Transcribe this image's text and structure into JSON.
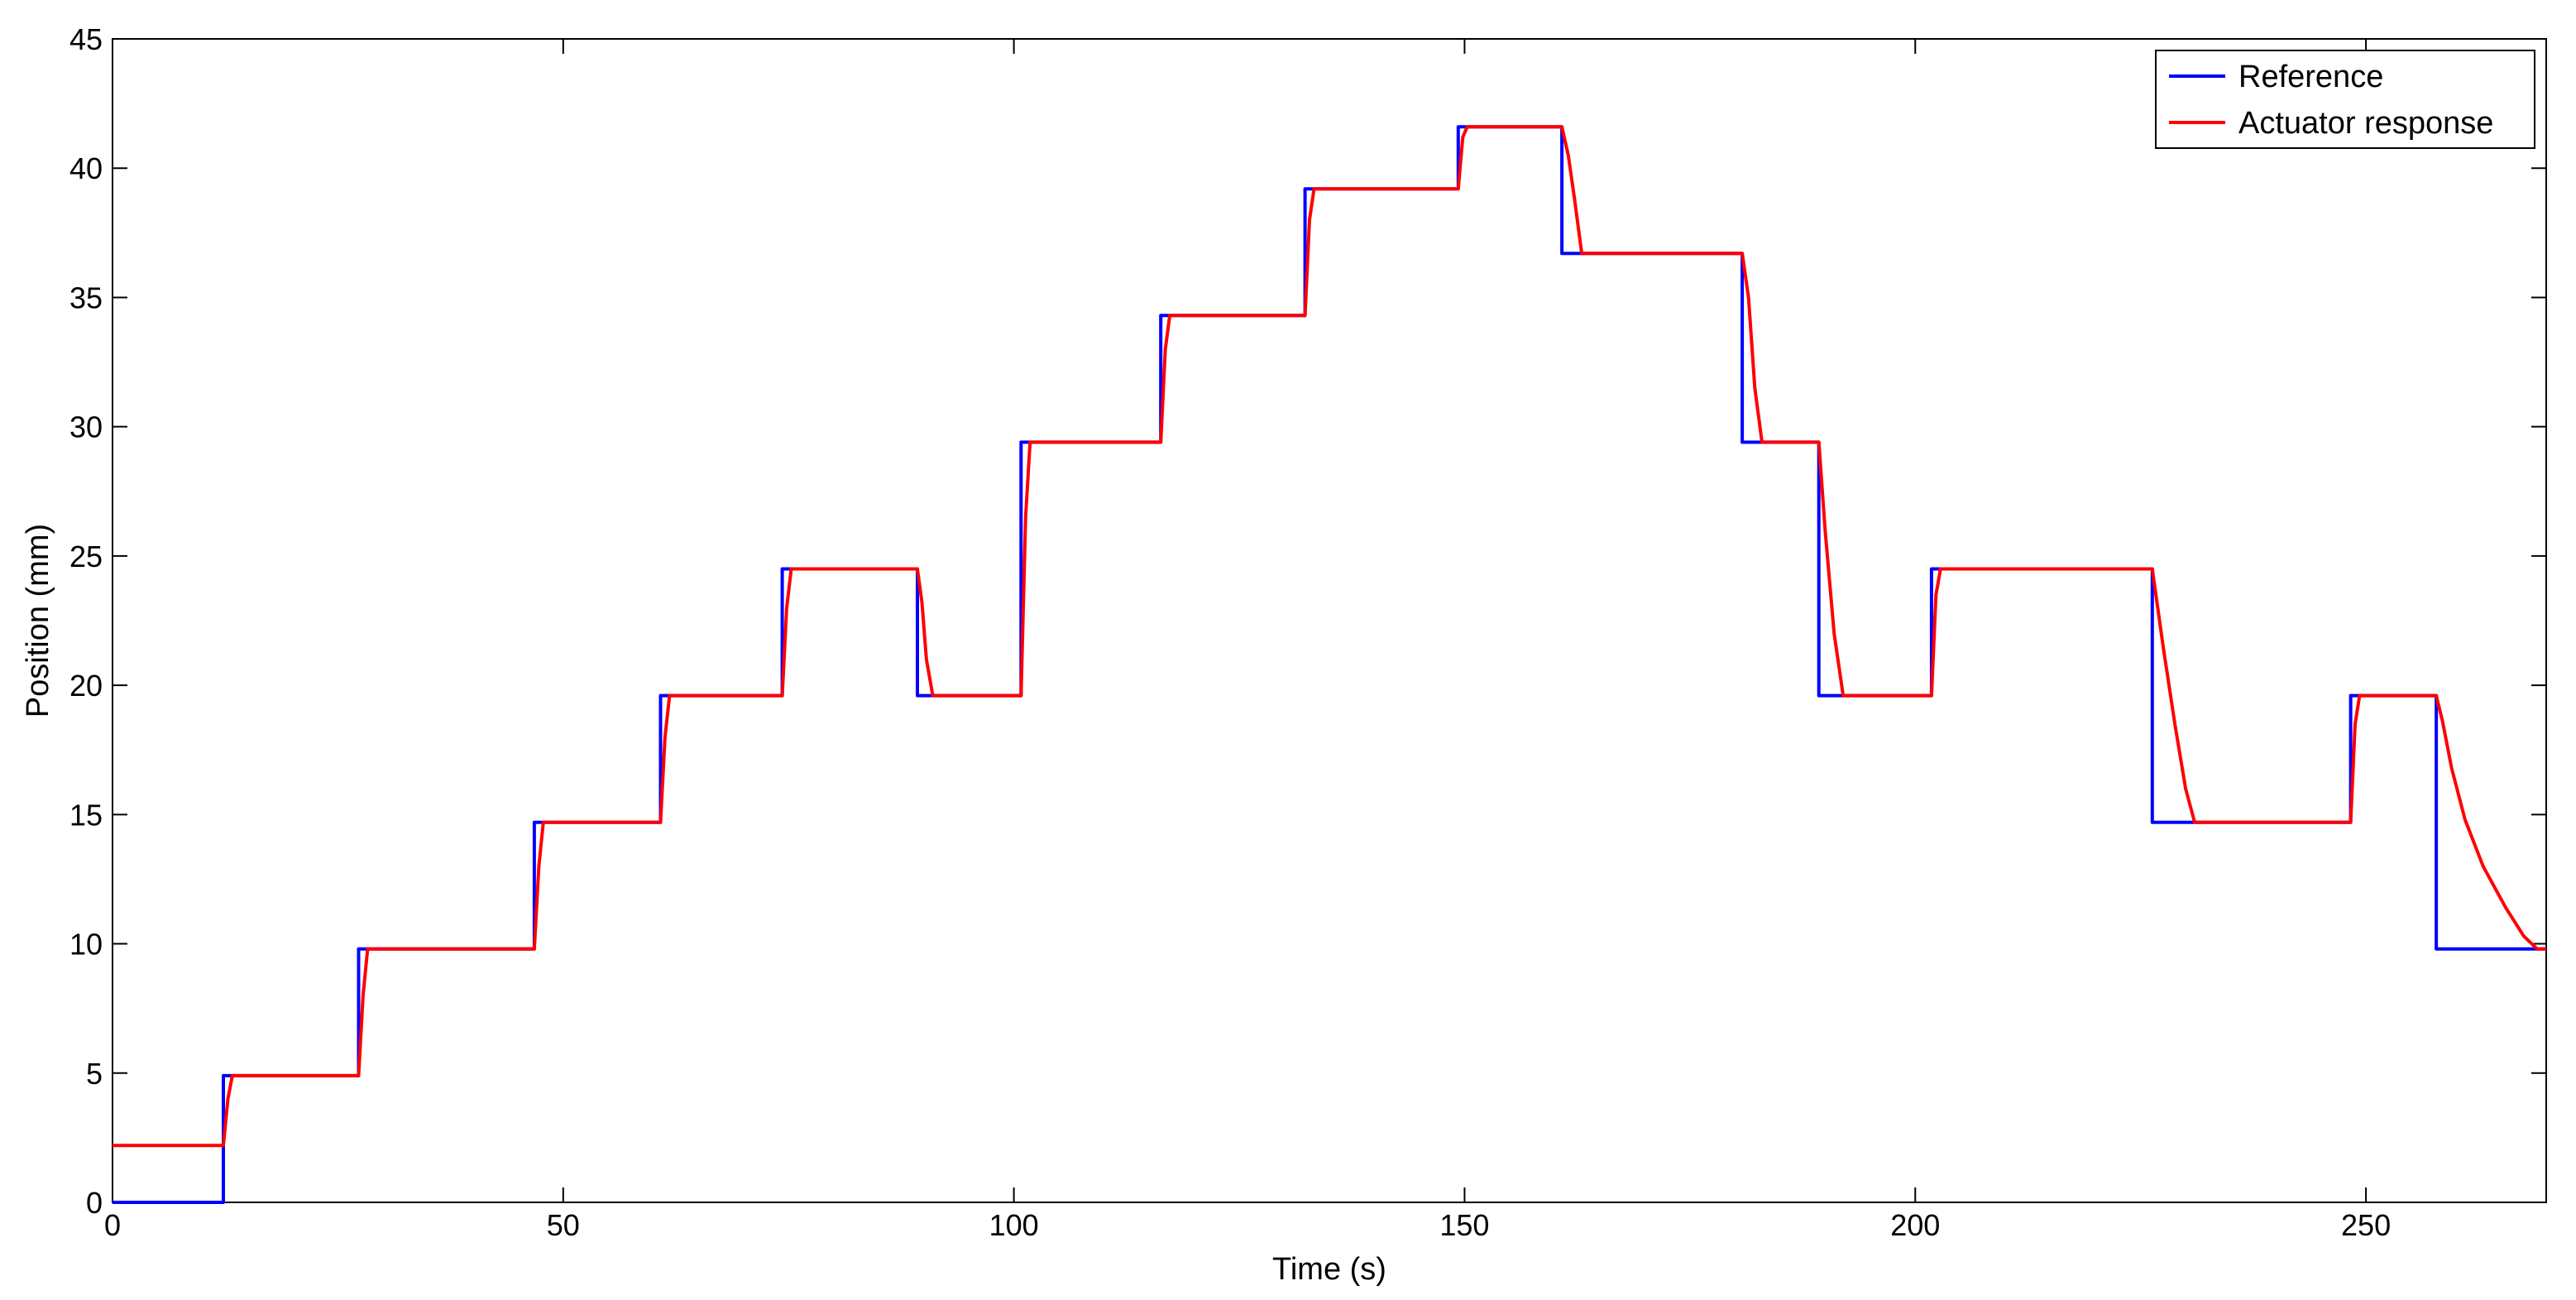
{
  "chart_data": {
    "type": "line",
    "title": "",
    "xlabel": "Time (s)",
    "ylabel": "Position (mm)",
    "xlim": [
      0,
      270
    ],
    "ylim": [
      0,
      45
    ],
    "xticks": [
      0,
      50,
      100,
      150,
      200,
      250
    ],
    "yticks": [
      0,
      5,
      10,
      15,
      20,
      25,
      30,
      35,
      40,
      45
    ],
    "grid": false,
    "legend_position": "top-right",
    "series": [
      {
        "name": "Reference",
        "color": "#0000ff",
        "x": [
          0,
          12.3,
          12.3,
          27.3,
          27.3,
          46.8,
          46.8,
          60.8,
          60.8,
          74.3,
          74.3,
          89.3,
          89.3,
          100.8,
          100.8,
          116.3,
          116.3,
          132.3,
          132.3,
          149.3,
          149.3,
          160.8,
          160.8,
          180.8,
          180.8,
          189.3,
          189.3,
          201.8,
          201.8,
          226.3,
          226.3,
          248.3,
          248.3,
          257.8,
          257.8,
          270
        ],
        "y": [
          0,
          0,
          4.9,
          4.9,
          9.8,
          9.8,
          14.7,
          14.7,
          19.6,
          19.6,
          24.5,
          24.5,
          19.6,
          19.6,
          29.4,
          29.4,
          34.3,
          34.3,
          39.2,
          39.2,
          41.6,
          41.6,
          36.7,
          36.7,
          29.4,
          29.4,
          19.6,
          19.6,
          24.5,
          24.5,
          14.7,
          14.7,
          19.6,
          19.6,
          9.8,
          9.8
        ]
      },
      {
        "name": "Actuator response",
        "color": "#ff0000",
        "x": [
          0,
          12.3,
          12.8,
          13.3,
          27.3,
          27.8,
          28.3,
          46.8,
          47.3,
          47.8,
          60.8,
          61.3,
          61.8,
          74.3,
          74.8,
          75.3,
          89.3,
          89.8,
          90.3,
          91.0,
          100.8,
          101.3,
          101.8,
          116.3,
          116.8,
          117.3,
          132.3,
          132.8,
          133.3,
          149.3,
          149.8,
          150.3,
          160.8,
          161.5,
          162.2,
          163.0,
          180.8,
          181.5,
          182.2,
          183.0,
          189.3,
          190.0,
          191.0,
          192.0,
          201.8,
          202.3,
          202.8,
          226.3,
          227.5,
          228.8,
          230.0,
          231.0,
          248.3,
          248.8,
          249.3,
          257.8,
          258.5,
          259.5,
          261.0,
          263.0,
          265.5,
          267.5,
          269.0,
          270
        ],
        "y": [
          2.2,
          2.2,
          4.0,
          4.9,
          4.9,
          8.0,
          9.8,
          9.8,
          13.0,
          14.7,
          14.7,
          18.0,
          19.6,
          19.6,
          23.0,
          24.5,
          24.5,
          23.2,
          21.0,
          19.6,
          19.6,
          26.5,
          29.4,
          29.4,
          33.0,
          34.3,
          34.3,
          38.0,
          39.2,
          39.2,
          41.2,
          41.6,
          41.6,
          40.5,
          38.8,
          36.7,
          36.7,
          35.0,
          31.5,
          29.4,
          29.4,
          26.0,
          22.0,
          19.6,
          19.6,
          23.5,
          24.5,
          24.5,
          21.5,
          18.5,
          16.0,
          14.7,
          14.7,
          18.5,
          19.6,
          19.6,
          18.6,
          16.8,
          14.8,
          13.0,
          11.4,
          10.3,
          9.8,
          9.8
        ]
      }
    ]
  }
}
